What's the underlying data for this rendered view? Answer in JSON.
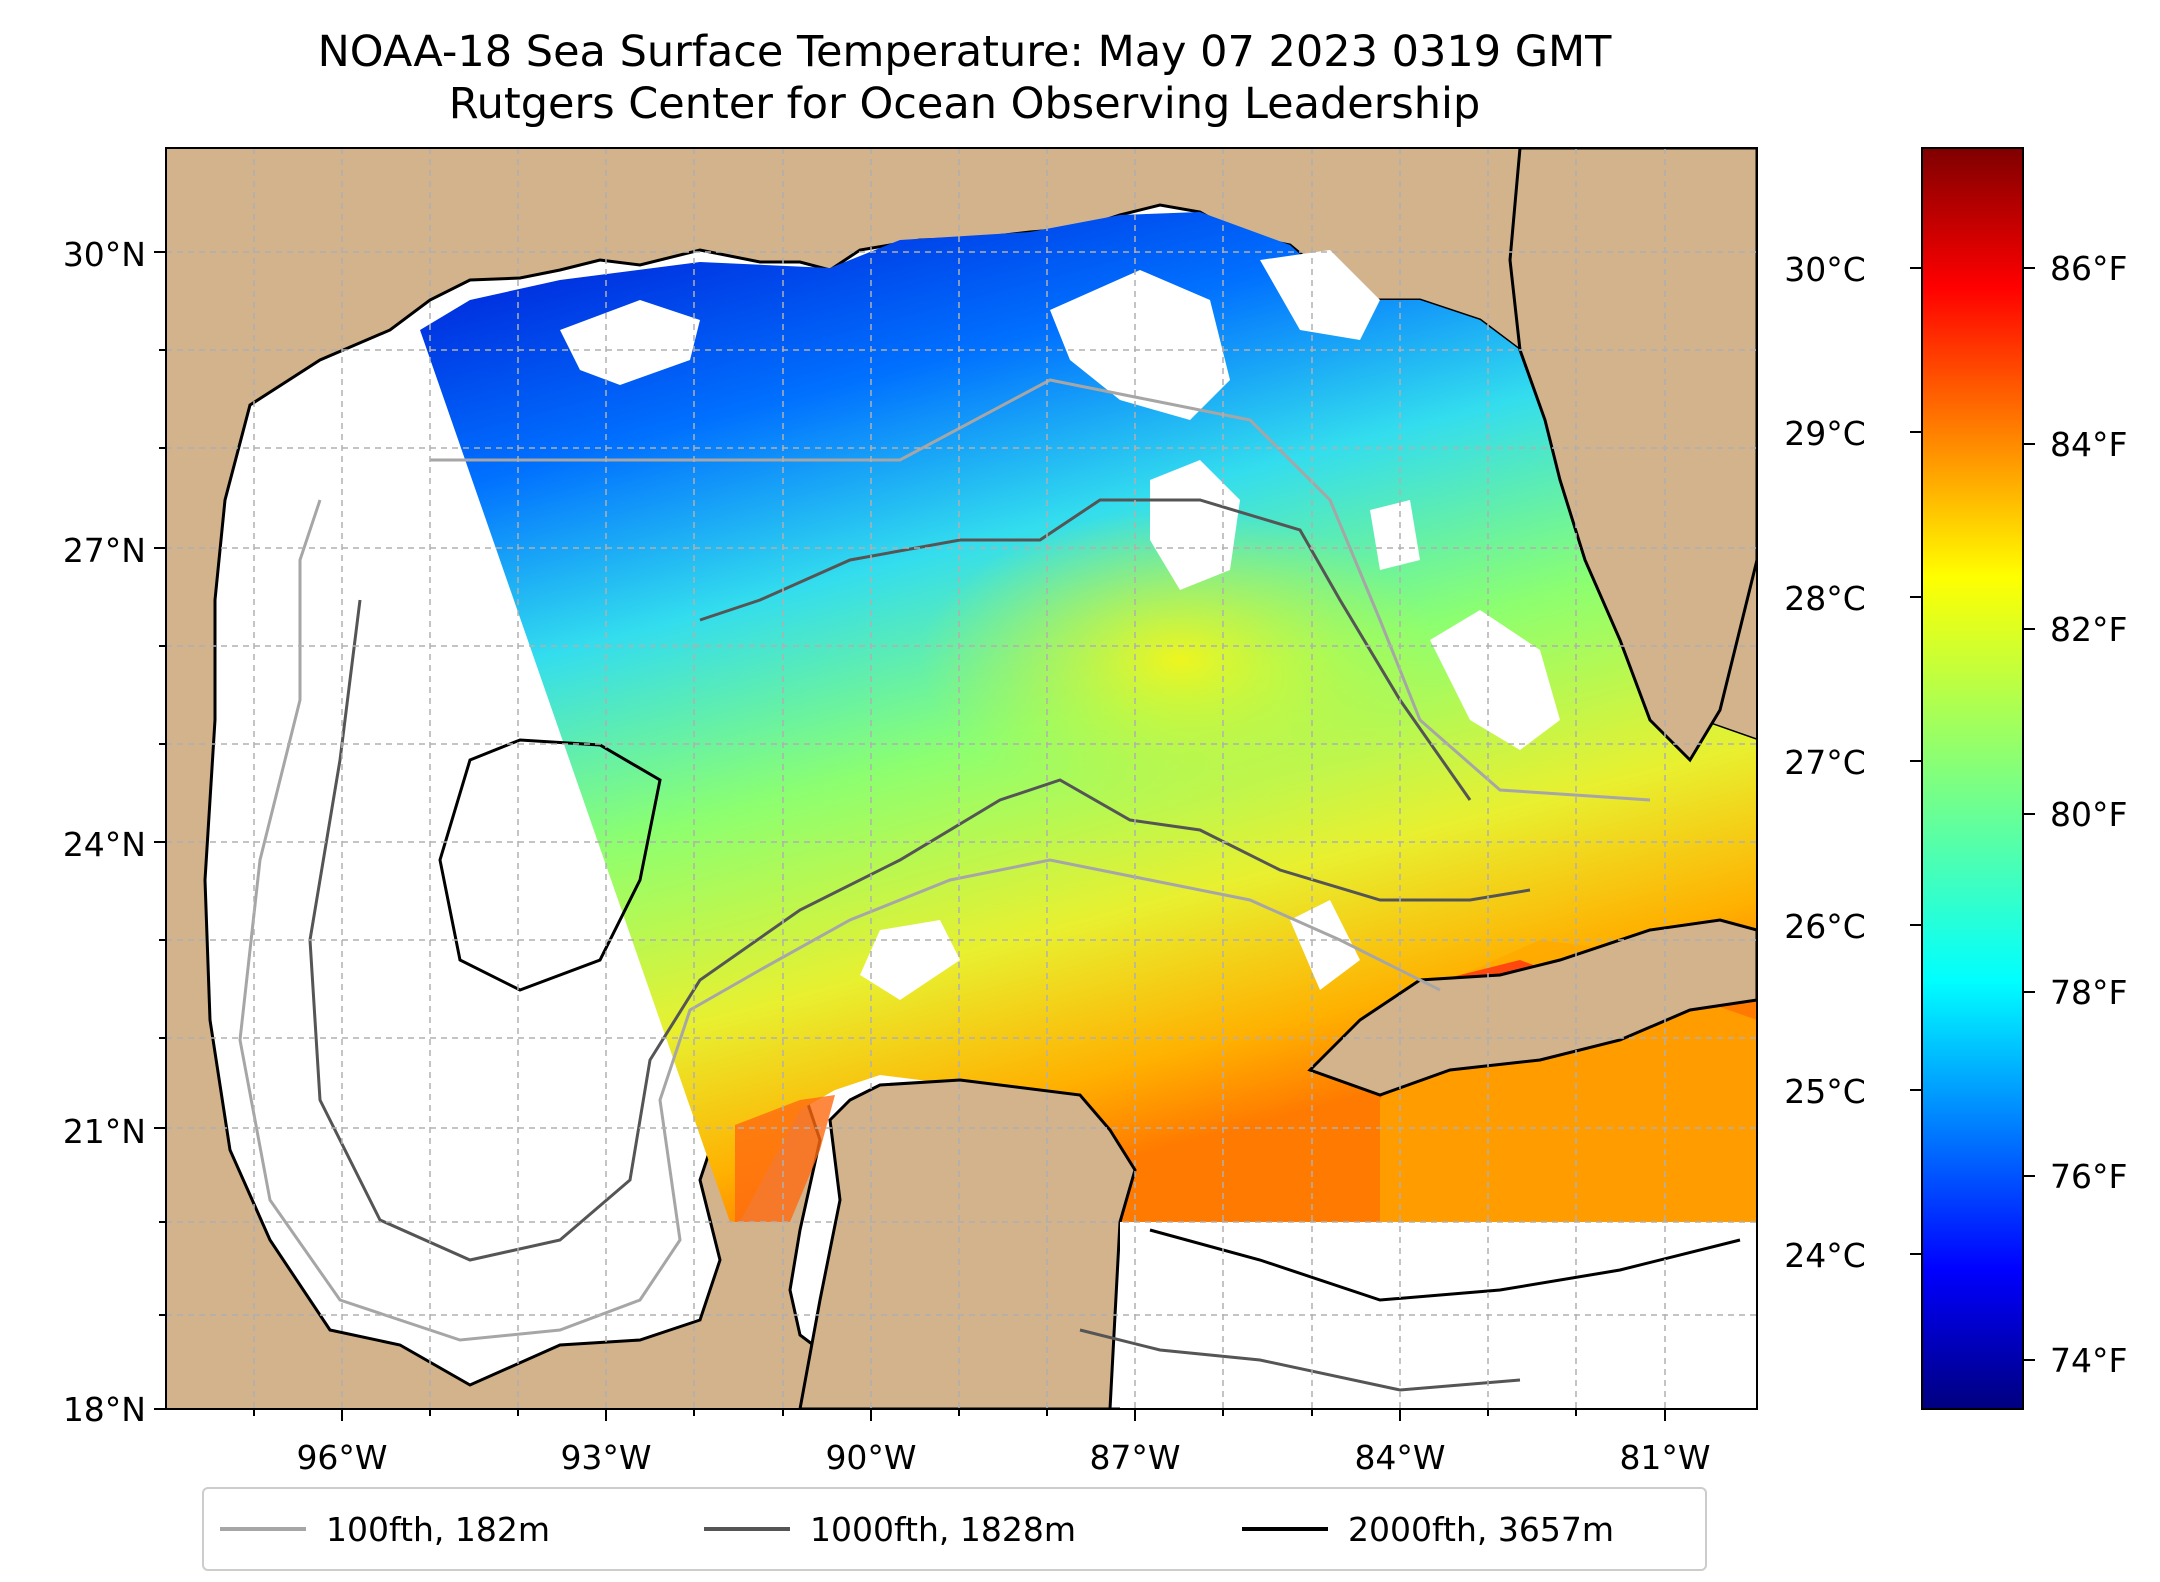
{
  "title": {
    "line1": "NOAA-18 Sea Surface Temperature: May 07 2023 0319 GMT",
    "line2": "Rutgers Center for Ocean Observing Leadership"
  },
  "colors": {
    "land": "#d2b38c",
    "ocean_missing": "#ffffff",
    "lakes": "#9db8e0",
    "coastline": "#000000",
    "grid": "#b0b0b0"
  },
  "map": {
    "lat_labels": [
      "30°N",
      "27°N",
      "24°N",
      "21°N",
      "18°N"
    ],
    "lon_labels": [
      "96°W",
      "93°W",
      "90°W",
      "87°W",
      "84°W",
      "81°W"
    ]
  },
  "colorbar": {
    "celsius_labels": [
      "30°C",
      "29°C",
      "28°C",
      "27°C",
      "26°C",
      "25°C",
      "24°C"
    ],
    "fahrenheit_labels": [
      "86°F",
      "84°F",
      "82°F",
      "80°F",
      "78°F",
      "76°F",
      "74°F"
    ],
    "colormap": "jet",
    "colormap_stops": [
      "#00007f",
      "#0000ff",
      "#007fff",
      "#00ffff",
      "#7fff7f",
      "#ffff00",
      "#ff7f00",
      "#ff0000",
      "#7f0000"
    ]
  },
  "legend": {
    "items": [
      {
        "label": "100fth, 182m",
        "color": "#a6a6a6"
      },
      {
        "label": "1000fth, 1828m",
        "color": "#555555"
      },
      {
        "label": "2000fth, 3657m",
        "color": "#000000"
      }
    ]
  }
}
